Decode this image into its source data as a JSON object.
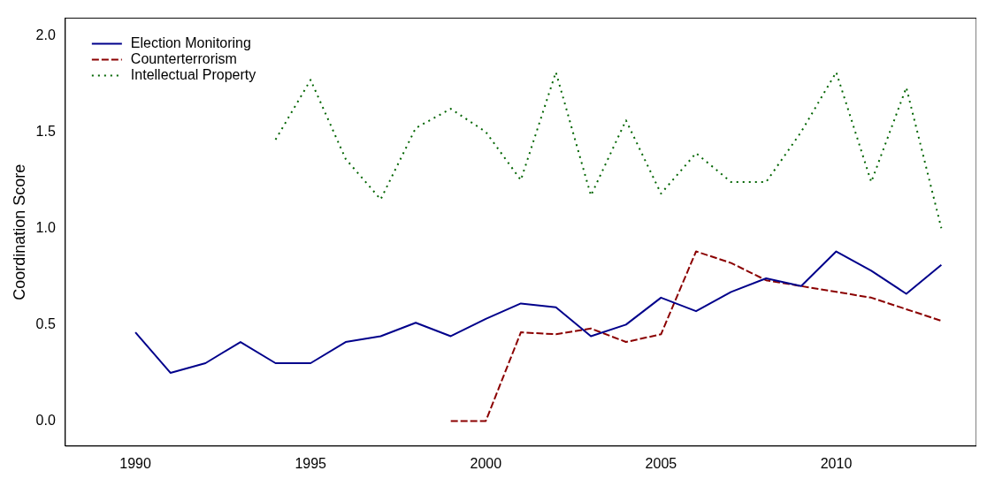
{
  "chart_data": {
    "type": "line",
    "ylabel": "Coordination Score",
    "x": [
      1990,
      1991,
      1992,
      1993,
      1994,
      1995,
      1996,
      1997,
      1998,
      1999,
      2000,
      2001,
      2002,
      2003,
      2004,
      2005,
      2006,
      2007,
      2008,
      2009,
      2010,
      2011,
      2012,
      2013
    ],
    "series": [
      {
        "name": "Election Monitoring",
        "color": "#00008b",
        "line_style": "solid",
        "values": [
          0.46,
          0.25,
          0.3,
          0.41,
          0.3,
          0.3,
          0.41,
          0.44,
          0.51,
          0.44,
          0.53,
          0.61,
          0.59,
          0.44,
          0.5,
          0.64,
          0.57,
          0.67,
          0.74,
          0.7,
          0.88,
          0.78,
          0.66,
          0.81
        ]
      },
      {
        "name": "Counterterrorism",
        "color": "#8b0000",
        "line_style": "dashed",
        "values": [
          null,
          null,
          null,
          null,
          null,
          null,
          null,
          null,
          null,
          0,
          0,
          0.46,
          0.45,
          0.48,
          0.41,
          0.45,
          0.88,
          0.82,
          0.73,
          0.7,
          0.67,
          0.64,
          0.58,
          0.52
        ]
      },
      {
        "name": "Intellectual Property",
        "color": "#006400",
        "line_style": "dotted",
        "values": [
          null,
          null,
          null,
          null,
          1.46,
          1.77,
          1.36,
          1.15,
          1.52,
          1.62,
          1.5,
          1.25,
          1.81,
          1.17,
          1.56,
          1.18,
          1.39,
          1.24,
          1.24,
          1.5,
          1.81,
          1.24,
          1.73,
          1.0
        ]
      }
    ],
    "xlim": [
      1988,
      2014
    ],
    "xticks": [
      1990,
      1995,
      2000,
      2005,
      2010
    ],
    "ylim": [
      -0.13,
      2.09
    ],
    "yticks": [
      {
        "value": 0,
        "label": "0.0"
      },
      {
        "value": 0.5,
        "label": "0.5"
      },
      {
        "value": 1,
        "label": "1.0"
      },
      {
        "value": 1.5,
        "label": "1.5"
      },
      {
        "value": 2,
        "label": "2.0"
      }
    ],
    "legend": "top left",
    "grid": false,
    "marker": "none"
  }
}
